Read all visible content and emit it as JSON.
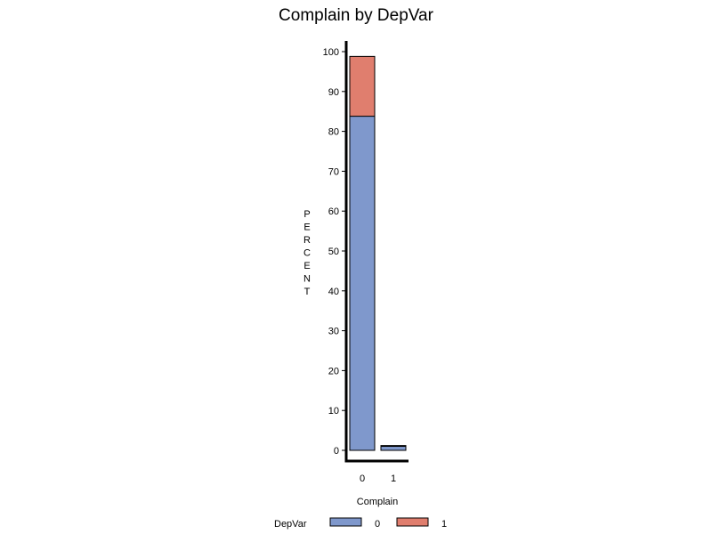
{
  "chart_data": {
    "type": "bar",
    "stacked": true,
    "title": "Complain by DepVar",
    "xlabel": "Complain",
    "ylabel": "PERCENT",
    "categories": [
      "0",
      "1"
    ],
    "series": [
      {
        "name": "0",
        "values": [
          83.8,
          1.0
        ],
        "color": "#7f98cc"
      },
      {
        "name": "1",
        "values": [
          15.0,
          0.2
        ],
        "color": "#e07e6e"
      }
    ],
    "ylim": [
      0,
      100
    ],
    "yticks": [
      "0",
      "10",
      "20",
      "30",
      "40",
      "50",
      "60",
      "70",
      "80",
      "90",
      "100"
    ],
    "grid": false,
    "legend": {
      "title": "DepVar",
      "placement": "bottom"
    }
  }
}
